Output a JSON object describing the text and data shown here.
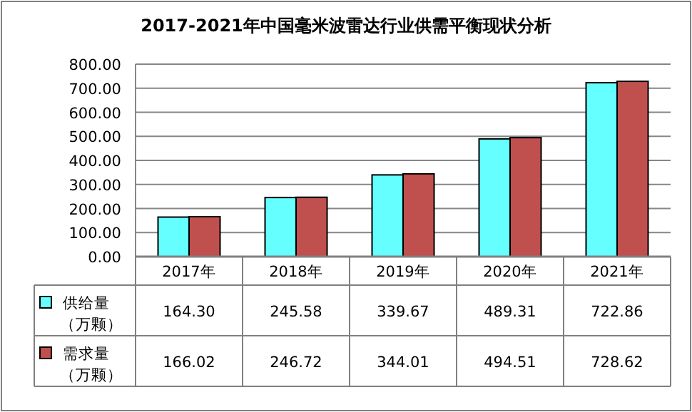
{
  "chart_data": {
    "type": "bar",
    "title": "2017-2021年中国毫米波雷达行业供需平衡现状分析",
    "categories": [
      "2017年",
      "2018年",
      "2019年",
      "2020年",
      "2021年"
    ],
    "series": [
      {
        "name": "供给量（万颗）",
        "color": "#66ffff",
        "values": [
          164.3,
          245.58,
          339.67,
          489.31,
          722.86
        ],
        "value_labels": [
          "164.30",
          "245.58",
          "339.67",
          "489.31",
          "722.86"
        ]
      },
      {
        "name": "需求量（万颗）",
        "color": "#c0504d",
        "values": [
          166.02,
          246.72,
          344.01,
          494.51,
          728.62
        ],
        "value_labels": [
          "166.02",
          "246.72",
          "344.01",
          "494.51",
          "728.62"
        ]
      }
    ],
    "ylim": [
      0,
      800
    ],
    "yticks": [
      {
        "value": 0,
        "label": "0.00"
      },
      {
        "value": 100,
        "label": "100.00"
      },
      {
        "value": 200,
        "label": "200.00"
      },
      {
        "value": 300,
        "label": "300.00"
      },
      {
        "value": 400,
        "label": "400.00"
      },
      {
        "value": 500,
        "label": "500.00"
      },
      {
        "value": 600,
        "label": "600.00"
      },
      {
        "value": 700,
        "label": "700.00"
      },
      {
        "value": 800,
        "label": "800.00"
      }
    ],
    "grid": "y",
    "legend": "bottom left"
  }
}
